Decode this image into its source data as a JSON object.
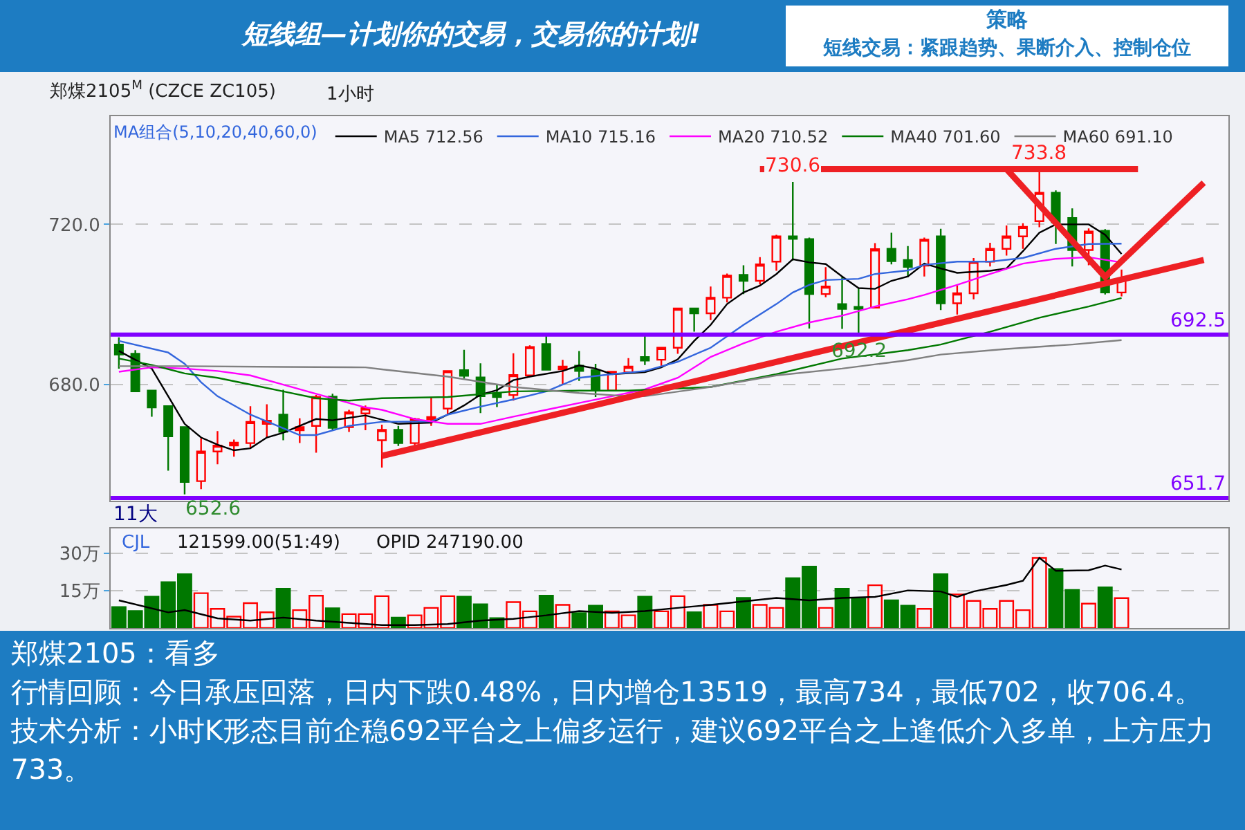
{
  "chart_data": [
    {
      "type": "candlestick",
      "title": "郑煤2105$^{M}$ (CZCE ZC105)",
      "subtitle": "1小时",
      "legend_title": "MA组合(5,10,20,40,60,0)",
      "legend": "top",
      "grid": "y",
      "tick_labels": "y",
      "categories": [
        null,
        null,
        null,
        null,
        null,
        null,
        null,
        null,
        null,
        null,
        null,
        null,
        null,
        null,
        null,
        null,
        null,
        null,
        null,
        null,
        null,
        null,
        null,
        null,
        null,
        null,
        null,
        null,
        null,
        null,
        null,
        null,
        null,
        null,
        null,
        null,
        null,
        null,
        null,
        null,
        null,
        null,
        null,
        null,
        null,
        null,
        null,
        null,
        null,
        null,
        null,
        null,
        null,
        null,
        null,
        null,
        null,
        null,
        null,
        null,
        null,
        null,
        null,
        null,
        null,
        null,
        null,
        null
      ],
      "ohlc": [
        [
          690.0,
          691.8,
          684.0,
          687.5
        ],
        [
          687.7,
          688.6,
          678.3,
          678.3
        ],
        [
          678.5,
          678.5,
          672.0,
          674.3
        ],
        [
          674.6,
          674.6,
          658.5,
          667.1
        ],
        [
          669.4,
          669.4,
          652.6,
          655.7
        ],
        [
          655.9,
          666.6,
          653.9,
          663.3
        ],
        [
          663.3,
          668.4,
          660.1,
          664.8
        ],
        [
          664.8,
          666.3,
          662.0,
          665.5
        ],
        [
          665.4,
          674.6,
          664.3,
          670.7
        ],
        [
          670.2,
          675.1,
          666.8,
          671.0
        ],
        [
          672.5,
          678.7,
          666.1,
          668.2
        ],
        [
          668.6,
          671.6,
          665.4,
          669.4
        ],
        [
          669.7,
          677.4,
          663.0,
          676.9
        ],
        [
          677.0,
          677.7,
          668.6,
          669.2
        ],
        [
          669.4,
          673.7,
          668.2,
          673.1
        ],
        [
          672.8,
          674.8,
          668.6,
          674.1
        ],
        [
          666.1,
          670.0,
          659.3,
          668.7
        ],
        [
          668.7,
          669.7,
          664.7,
          665.4
        ],
        [
          665.4,
          671.7,
          664.3,
          671.4
        ],
        [
          671.3,
          676.9,
          669.7,
          671.9
        ],
        [
          674.0,
          683.4,
          672.5,
          683.4
        ],
        [
          683.6,
          688.7,
          681.5,
          682.2
        ],
        [
          681.8,
          685.3,
          672.9,
          677.1
        ],
        [
          677.8,
          680.0,
          674.4,
          676.9
        ],
        [
          677.4,
          687.8,
          676.0,
          682.4
        ],
        [
          682.3,
          689.8,
          682.3,
          689.4
        ],
        [
          690.1,
          692.3,
          683.7,
          683.7
        ],
        [
          683.8,
          686.2,
          680.0,
          684.5
        ],
        [
          684.7,
          688.4,
          680.9,
          683.4
        ],
        [
          683.6,
          685.2,
          676.9,
          678.6
        ],
        [
          678.5,
          683.4,
          678.3,
          683.2
        ],
        [
          683.1,
          686.6,
          683.0,
          684.5
        ],
        [
          686.9,
          692.3,
          684.9,
          686.0
        ],
        [
          686.2,
          689.2,
          684.6,
          689.2
        ],
        [
          689.2,
          699.0,
          687.7,
          699.0
        ],
        [
          699.0,
          699.0,
          693.2,
          697.8
        ],
        [
          697.8,
          704.5,
          696.1,
          701.7
        ],
        [
          701.7,
          707.7,
          700.5,
          707.2
        ],
        [
          707.4,
          709.8,
          702.6,
          705.9
        ],
        [
          705.9,
          711.8,
          705.0,
          710.0
        ],
        [
          710.7,
          717.4,
          708.4,
          717.0
        ],
        [
          717.0,
          730.6,
          711.0,
          716.4
        ],
        [
          716.3,
          716.7,
          694.0,
          702.6
        ],
        [
          702.6,
          709.3,
          701.8,
          704.5
        ],
        [
          700.1,
          706.8,
          693.9,
          698.9
        ],
        [
          699.4,
          704.0,
          692.2,
          698.9
        ],
        [
          699.2,
          715.3,
          699.2,
          713.8
        ],
        [
          713.9,
          717.9,
          710.0,
          710.8
        ],
        [
          711.1,
          714.6,
          706.8,
          709.4
        ],
        [
          709.7,
          716.7,
          707.0,
          716.2
        ],
        [
          717.0,
          718.9,
          698.6,
          700.3
        ],
        [
          700.3,
          704.7,
          697.5,
          702.8
        ],
        [
          702.8,
          711.6,
          701.3,
          710.7
        ],
        [
          710.7,
          715.4,
          709.5,
          713.9
        ],
        [
          713.9,
          719.7,
          712.2,
          717.0
        ],
        [
          717.0,
          720.3,
          713.9,
          719.4
        ],
        [
          720.8,
          733.8,
          719.3,
          727.9
        ],
        [
          727.9,
          728.5,
          715.1,
          720.5
        ],
        [
          721.6,
          724.0,
          709.5,
          713.6
        ],
        [
          713.6,
          719.0,
          709.8,
          718.2
        ],
        [
          718.4,
          718.8,
          702.5,
          703.0
        ],
        [
          703.0,
          708.7,
          702.0,
          706.4
        ],
        null,
        null,
        null,
        null,
        null,
        null
      ],
      "colors": [
        "#007800",
        "#007800",
        "#007800",
        "#007800",
        "#007800",
        "#ff0000",
        "#ff0000",
        "#ff0000",
        "#ff0000",
        "#ff0000",
        "#007800",
        "#ff0000",
        "#ff0000",
        "#007800",
        "#ff0000",
        "#ff0000",
        "#ff0000",
        "#007800",
        "#ff0000",
        "#ff0000",
        "#ff0000",
        "#007800",
        "#007800",
        "#007800",
        "#ff0000",
        "#ff0000",
        "#007800",
        "#ff0000",
        "#007800",
        "#007800",
        "#ff0000",
        "#ff0000",
        "#007800",
        "#ff0000",
        "#ff0000",
        "#007800",
        "#ff0000",
        "#ff0000",
        "#007800",
        "#ff0000",
        "#ff0000",
        "#007800",
        "#007800",
        "#ff0000",
        "#007800",
        "#007800",
        "#ff0000",
        "#007800",
        "#007800",
        "#ff0000",
        "#007800",
        "#ff0000",
        "#ff0000",
        "#ff0000",
        "#ff0000",
        "#ff0000",
        "#ff0000",
        "#007800",
        "#007800",
        "#ff0000",
        "#007800",
        "#ff0000",
        null,
        null,
        null,
        null,
        null,
        null
      ],
      "series": [
        {
          "type": "line",
          "name": "MA5 712.56",
          "color": "#000000",
          "values": [
            688.4,
            null,
            684.0,
            677.1,
            670.2,
            666.8,
            665.0,
            663.6,
            664.1,
            666.8,
            668.0,
            null,
            671.4,
            671.1,
            null,
            672.3,
            null,
            670.2,
            null,
            670.5,
            672.5,
            674.8,
            677.5,
            678.6,
            681.1,
            682.0,
            null,
            683.4,
            684.8,
            684.0,
            682.6,
            null,
            683.1,
            684.3,
            686.3,
            690.9,
            694.9,
            700.1,
            703.0,
            704.7,
            707.6,
            711.3,
            710.5,
            710.1,
            707.0,
            704.1,
            703.9,
            705.9,
            707.0,
            710.2,
            709.0,
            707.9,
            null,
            708.4,
            709.0,
            713.3,
            717.9,
            720.0,
            null,
            720.0,
            717.4,
            712.6,
            null,
            null,
            null,
            null,
            null,
            null
          ]
        },
        {
          "type": "line",
          "name": "MA10 715.16",
          "color": "#3366dd",
          "values": [
            690.9,
            null,
            null,
            688.0,
            685.2,
            680.6,
            677.1,
            null,
            672.5,
            null,
            669.1,
            667.4,
            667.4,
            null,
            669.7,
            null,
            670.7,
            null,
            null,
            670.8,
            672.5,
            null,
            674.5,
            null,
            676.3,
            null,
            678.3,
            null,
            681.7,
            null,
            682.6,
            null,
            683.4,
            null,
            685.7,
            null,
            689.2,
            null,
            694.9,
            null,
            700.1,
            703.0,
            704.9,
            706.1,
            null,
            706.4,
            707.6,
            null,
            708.5,
            709.9,
            null,
            710.7,
            null,
            710.7,
            null,
            711.6,
            null,
            713.9,
            null,
            715.1,
            null,
            715.2,
            null,
            null,
            null,
            null,
            null,
            null
          ]
        },
        {
          "type": "line",
          "name": "MA20 710.52",
          "color": "#ff00ff",
          "values": [
            683.2,
            null,
            684.3,
            null,
            684.0,
            null,
            683.4,
            null,
            682.3,
            null,
            680.0,
            null,
            677.7,
            null,
            675.4,
            674.3,
            673.7,
            null,
            671.4,
            null,
            670.2,
            null,
            670.2,
            null,
            672.0,
            null,
            673.7,
            null,
            675.4,
            null,
            677.1,
            null,
            678.8,
            null,
            681.7,
            null,
            686.9,
            null,
            690.3,
            null,
            693.2,
            null,
            695.5,
            null,
            697.2,
            null,
            699.5,
            null,
            701.3,
            702.4,
            null,
            704.9,
            null,
            707.6,
            null,
            710.2,
            null,
            711.4,
            null,
            711.8,
            null,
            710.5,
            null,
            null,
            null,
            null,
            null,
            null
          ]
        },
        {
          "type": "line",
          "name": "MA40 701.60",
          "color": "#007800",
          "values": [
            686.5,
            null,
            684.9,
            null,
            682.8,
            null,
            681.7,
            null,
            680.0,
            null,
            678.3,
            null,
            676.6,
            null,
            676.0,
            null,
            676.6,
            null,
            null,
            null,
            676.9,
            null,
            null,
            null,
            678.3,
            null,
            null,
            null,
            678.5,
            null,
            null,
            678.5,
            null,
            null,
            null,
            null,
            679.4,
            null,
            null,
            null,
            682.6,
            null,
            null,
            null,
            686.5,
            null,
            null,
            null,
            688.6,
            null,
            690.0,
            null,
            null,
            693.2,
            null,
            null,
            696.7,
            null,
            null,
            699.5,
            null,
            701.6,
            null,
            null,
            null,
            null,
            null,
            null
          ]
        },
        {
          "type": "line",
          "name": "MA60 691.10",
          "color": "#808080",
          "values": [
            684.6,
            null,
            null,
            null,
            684.6,
            null,
            null,
            null,
            null,
            null,
            684.4,
            null,
            null,
            null,
            null,
            684.3,
            683.8,
            null,
            null,
            null,
            682.0,
            null,
            null,
            null,
            679.4,
            null,
            null,
            null,
            677.9,
            null,
            null,
            677.1,
            677.1,
            null,
            null,
            null,
            679.4,
            null,
            null,
            null,
            682.3,
            null,
            null,
            null,
            684.0,
            null,
            null,
            null,
            686.1,
            null,
            687.5,
            null,
            null,
            null,
            688.9,
            null,
            null,
            null,
            690.0,
            null,
            null,
            691.1,
            null,
            null,
            null,
            null,
            null,
            null
          ]
        },
        {
          "type": "line",
          "color": "#ee2024",
          "values": [
            null,
            null,
            null,
            null,
            null,
            null,
            null,
            null,
            null,
            null,
            null,
            null,
            null,
            null,
            null,
            null,
            662.2,
            null,
            null,
            null,
            null,
            null,
            null,
            null,
            null,
            null,
            null,
            null,
            null,
            null,
            null,
            null,
            null,
            null,
            null,
            null,
            null,
            null,
            null,
            null,
            null,
            null,
            null,
            null,
            null,
            null,
            null,
            null,
            null,
            null,
            null,
            null,
            null,
            null,
            null,
            null,
            null,
            null,
            null,
            null,
            null,
            null,
            null,
            null,
            null,
            null,
            711.1,
            null
          ]
        },
        {
          "type": "line",
          "color": "#ee2024",
          "values": [
            null,
            null,
            null,
            null,
            null,
            null,
            null,
            null,
            null,
            null,
            null,
            null,
            null,
            null,
            null,
            null,
            null,
            null,
            null,
            null,
            null,
            null,
            null,
            null,
            null,
            null,
            null,
            null,
            null,
            null,
            null,
            null,
            null,
            null,
            null,
            null,
            null,
            null,
            null,
            733.8,
            null,
            null,
            null,
            null,
            null,
            null,
            null,
            null,
            null,
            null,
            null,
            null,
            null,
            null,
            null,
            null,
            null,
            null,
            null,
            null,
            null,
            null,
            733.8,
            null,
            null,
            null,
            null,
            null
          ]
        },
        {
          "type": "line",
          "color": "#ee2024",
          "values": [
            null,
            null,
            null,
            null,
            null,
            null,
            null,
            null,
            null,
            null,
            null,
            null,
            null,
            null,
            null,
            null,
            null,
            null,
            null,
            null,
            null,
            null,
            null,
            null,
            null,
            null,
            null,
            null,
            null,
            null,
            null,
            null,
            null,
            null,
            null,
            null,
            null,
            null,
            null,
            null,
            null,
            null,
            null,
            null,
            null,
            null,
            null,
            null,
            null,
            null,
            null,
            null,
            null,
            null,
            733.8,
            null,
            null,
            null,
            null,
            null,
            706.9,
            null,
            null,
            null,
            null,
            null,
            730.4,
            null
          ]
        }
      ],
      "ylim": [
        651,
        747
      ],
      "yticks": [
        {
          "value": 680,
          "label": "680.0"
        },
        {
          "value": 720,
          "label": "720.0"
        }
      ],
      "ref_lines": [
        {
          "axis": "y",
          "value": 692.5,
          "label": "692.5",
          "color": "#8000ff"
        },
        {
          "axis": "y",
          "value": 651.7,
          "label": "651.7",
          "color": "#8000ff"
        }
      ],
      "annotations": [
        "短线组—计划你的交易，交易你的计划!",
        "策略",
        "短线交易：紧跟趋势、果断介入、控制仓位",
        "郑煤2105：看多",
        "行情回顾：今日承压回落，日内下跌0.48%，日内增仓13519，最高734，最低702，收706.4。",
        "技术分析：小时K形态目前企稳692平台之上偏多运行，建议692平台之上逢低介入多单，上方压力733。",
        "11大",
        {
          "text": "733.8",
          "y": 733.8
        },
        {
          "text": "730.6",
          "y": 730.6
        },
        {
          "text": "692.2",
          "y": 692.2
        },
        {
          "text": "652.6",
          "y": 652.6
        }
      ]
    },
    {
      "type": "bar",
      "grid": "y",
      "tick_labels": "y",
      "categories": [
        null,
        null,
        null,
        null,
        null,
        null,
        null,
        null,
        null,
        null,
        null,
        null,
        null,
        null,
        null,
        null,
        null,
        null,
        null,
        null,
        null,
        null,
        null,
        null,
        null,
        null,
        null,
        null,
        null,
        null,
        null,
        null,
        null,
        null,
        null,
        null,
        null,
        null,
        null,
        null,
        null,
        null,
        null,
        null,
        null,
        null,
        null,
        null,
        null,
        null,
        null,
        null,
        null,
        null,
        null,
        null,
        null,
        null,
        null,
        null,
        null,
        null,
        null,
        null,
        null,
        null,
        null,
        null
      ],
      "values": [
        8.4,
        6.8,
        12.6,
        18.4,
        21.6,
        14.0,
        7.7,
        4.6,
        10.0,
        6.3,
        15.8,
        7.2,
        13.0,
        7.9,
        5.6,
        5.6,
        12.8,
        4.2,
        5.1,
        8.1,
        12.8,
        12.6,
        9.5,
        4.0,
        10.4,
        6.7,
        13.0,
        9.3,
        6.0,
        9.0,
        6.7,
        5.1,
        12.6,
        6.7,
        12.8,
        6.3,
        9.3,
        6.7,
        12.1,
        9.3,
        8.1,
        20.0,
        24.7,
        8.1,
        15.8,
        11.8,
        17.2,
        11.1,
        9.0,
        7.7,
        21.6,
        13.5,
        10.9,
        7.7,
        10.9,
        7.2,
        28.2,
        23.7,
        15.3,
        9.8,
        16.3,
        12.0,
        null,
        null,
        null,
        null,
        null,
        null
      ],
      "colors": [
        "#007800",
        "#007800",
        "#007800",
        "#007800",
        "#007800",
        "#ff0000",
        "#ff0000",
        "#ff0000",
        "#ff0000",
        "#ff0000",
        "#007800",
        "#ff0000",
        "#ff0000",
        "#007800",
        "#ff0000",
        "#ff0000",
        "#ff0000",
        "#007800",
        "#ff0000",
        "#ff0000",
        "#ff0000",
        "#007800",
        "#007800",
        "#007800",
        "#ff0000",
        "#ff0000",
        "#007800",
        "#ff0000",
        "#007800",
        "#007800",
        "#ff0000",
        "#ff0000",
        "#007800",
        "#ff0000",
        "#ff0000",
        "#007800",
        "#ff0000",
        "#ff0000",
        "#007800",
        "#ff0000",
        "#ff0000",
        "#007800",
        "#007800",
        "#ff0000",
        "#007800",
        "#007800",
        "#ff0000",
        "#007800",
        "#007800",
        "#ff0000",
        "#007800",
        "#ff0000",
        "#ff0000",
        "#ff0000",
        "#ff0000",
        "#ff0000",
        "#ff0000",
        "#007800",
        "#007800",
        "#ff0000",
        "#007800",
        "#ff0000",
        null,
        null,
        null,
        null,
        null,
        null
      ],
      "series": [
        {
          "type": "line",
          "color": "#000000",
          "values": [
            11.1,
            null,
            null,
            6.3,
            7.2,
            null,
            3.9,
            null,
            3.0,
            null,
            4.2,
            null,
            3.0,
            null,
            2.1,
            null,
            1.2,
            null,
            1.2,
            null,
            1.6,
            null,
            3.0,
            null,
            3.7,
            null,
            5.1,
            null,
            6.8,
            null,
            6.1,
            null,
            6.8,
            null,
            8.1,
            null,
            9.3,
            null,
            10.7,
            null,
            12.1,
            null,
            11.1,
            null,
            12.1,
            null,
            12.5,
            null,
            15.1,
            null,
            14.7,
            12.5,
            14.7,
            null,
            17.3,
            19.0,
            28.2,
            23.0,
            null,
            23.2,
            25.1,
            23.5,
            null,
            null,
            null,
            null,
            null,
            null
          ]
        }
      ],
      "ylim": [
        0,
        40
      ],
      "yticks": [
        {
          "value": 15,
          "label": "15万"
        },
        {
          "value": 30,
          "label": "30万"
        }
      ],
      "annotations": [
        "CJL",
        "121599.00(51:49)",
        "OPID 247190.00"
      ]
    }
  ]
}
